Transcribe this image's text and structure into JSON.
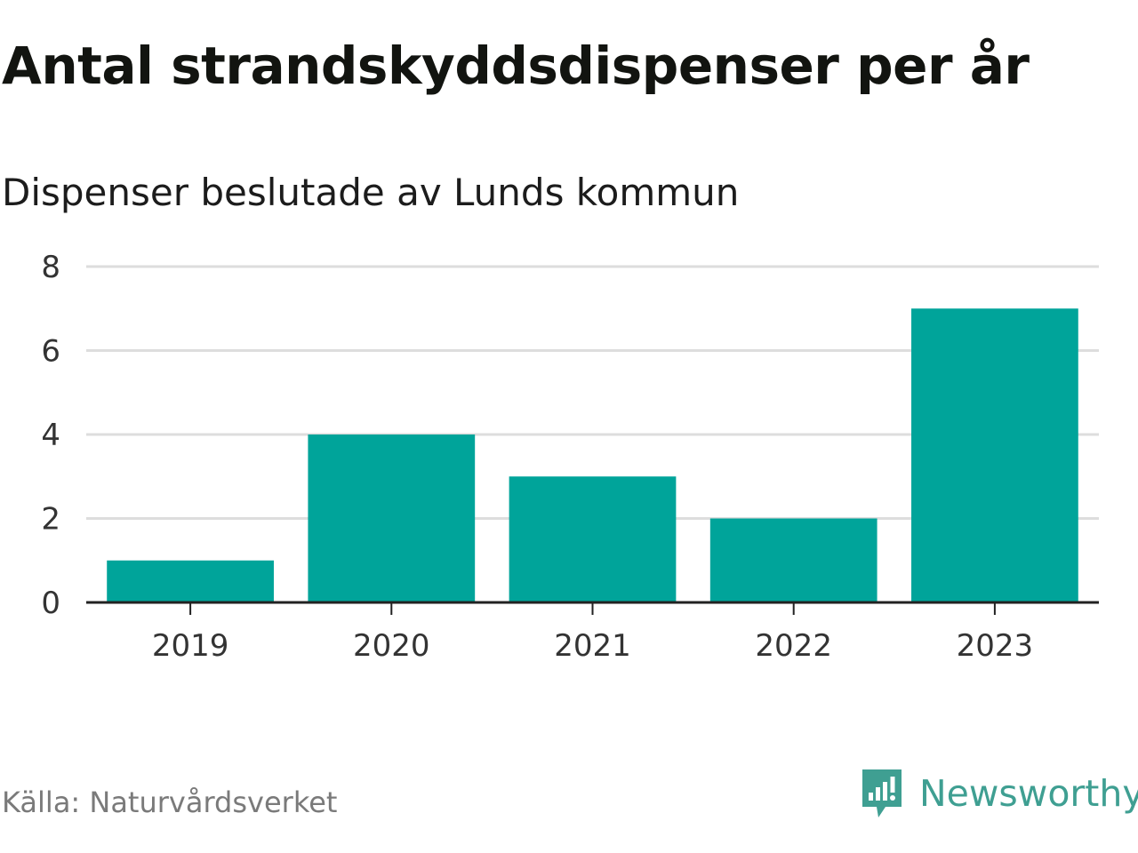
{
  "title": "Antal strandskyddsdispenser per år",
  "subtitle": "Dispenser beslutade av Lunds kommun",
  "source": "Källa: Naturvårdsverket",
  "brand": {
    "name": "Newsworthy",
    "color": "#3f9f92",
    "icon": "newsworthy-logo-icon"
  },
  "colors": {
    "bar": "#00a49a",
    "grid": "#dddddd",
    "axis": "#222222"
  },
  "chart_data": {
    "type": "bar",
    "title": "Antal strandskyddsdispenser per år",
    "subtitle": "Dispenser beslutade av Lunds kommun",
    "categories": [
      "2019",
      "2020",
      "2021",
      "2022",
      "2023"
    ],
    "values": [
      1,
      4,
      3,
      2,
      7
    ],
    "xlabel": "",
    "ylabel": "",
    "ylim": [
      0,
      8
    ],
    "yticks": [
      "0",
      "2",
      "4",
      "6",
      "8"
    ],
    "grid": true,
    "legend": "none"
  }
}
